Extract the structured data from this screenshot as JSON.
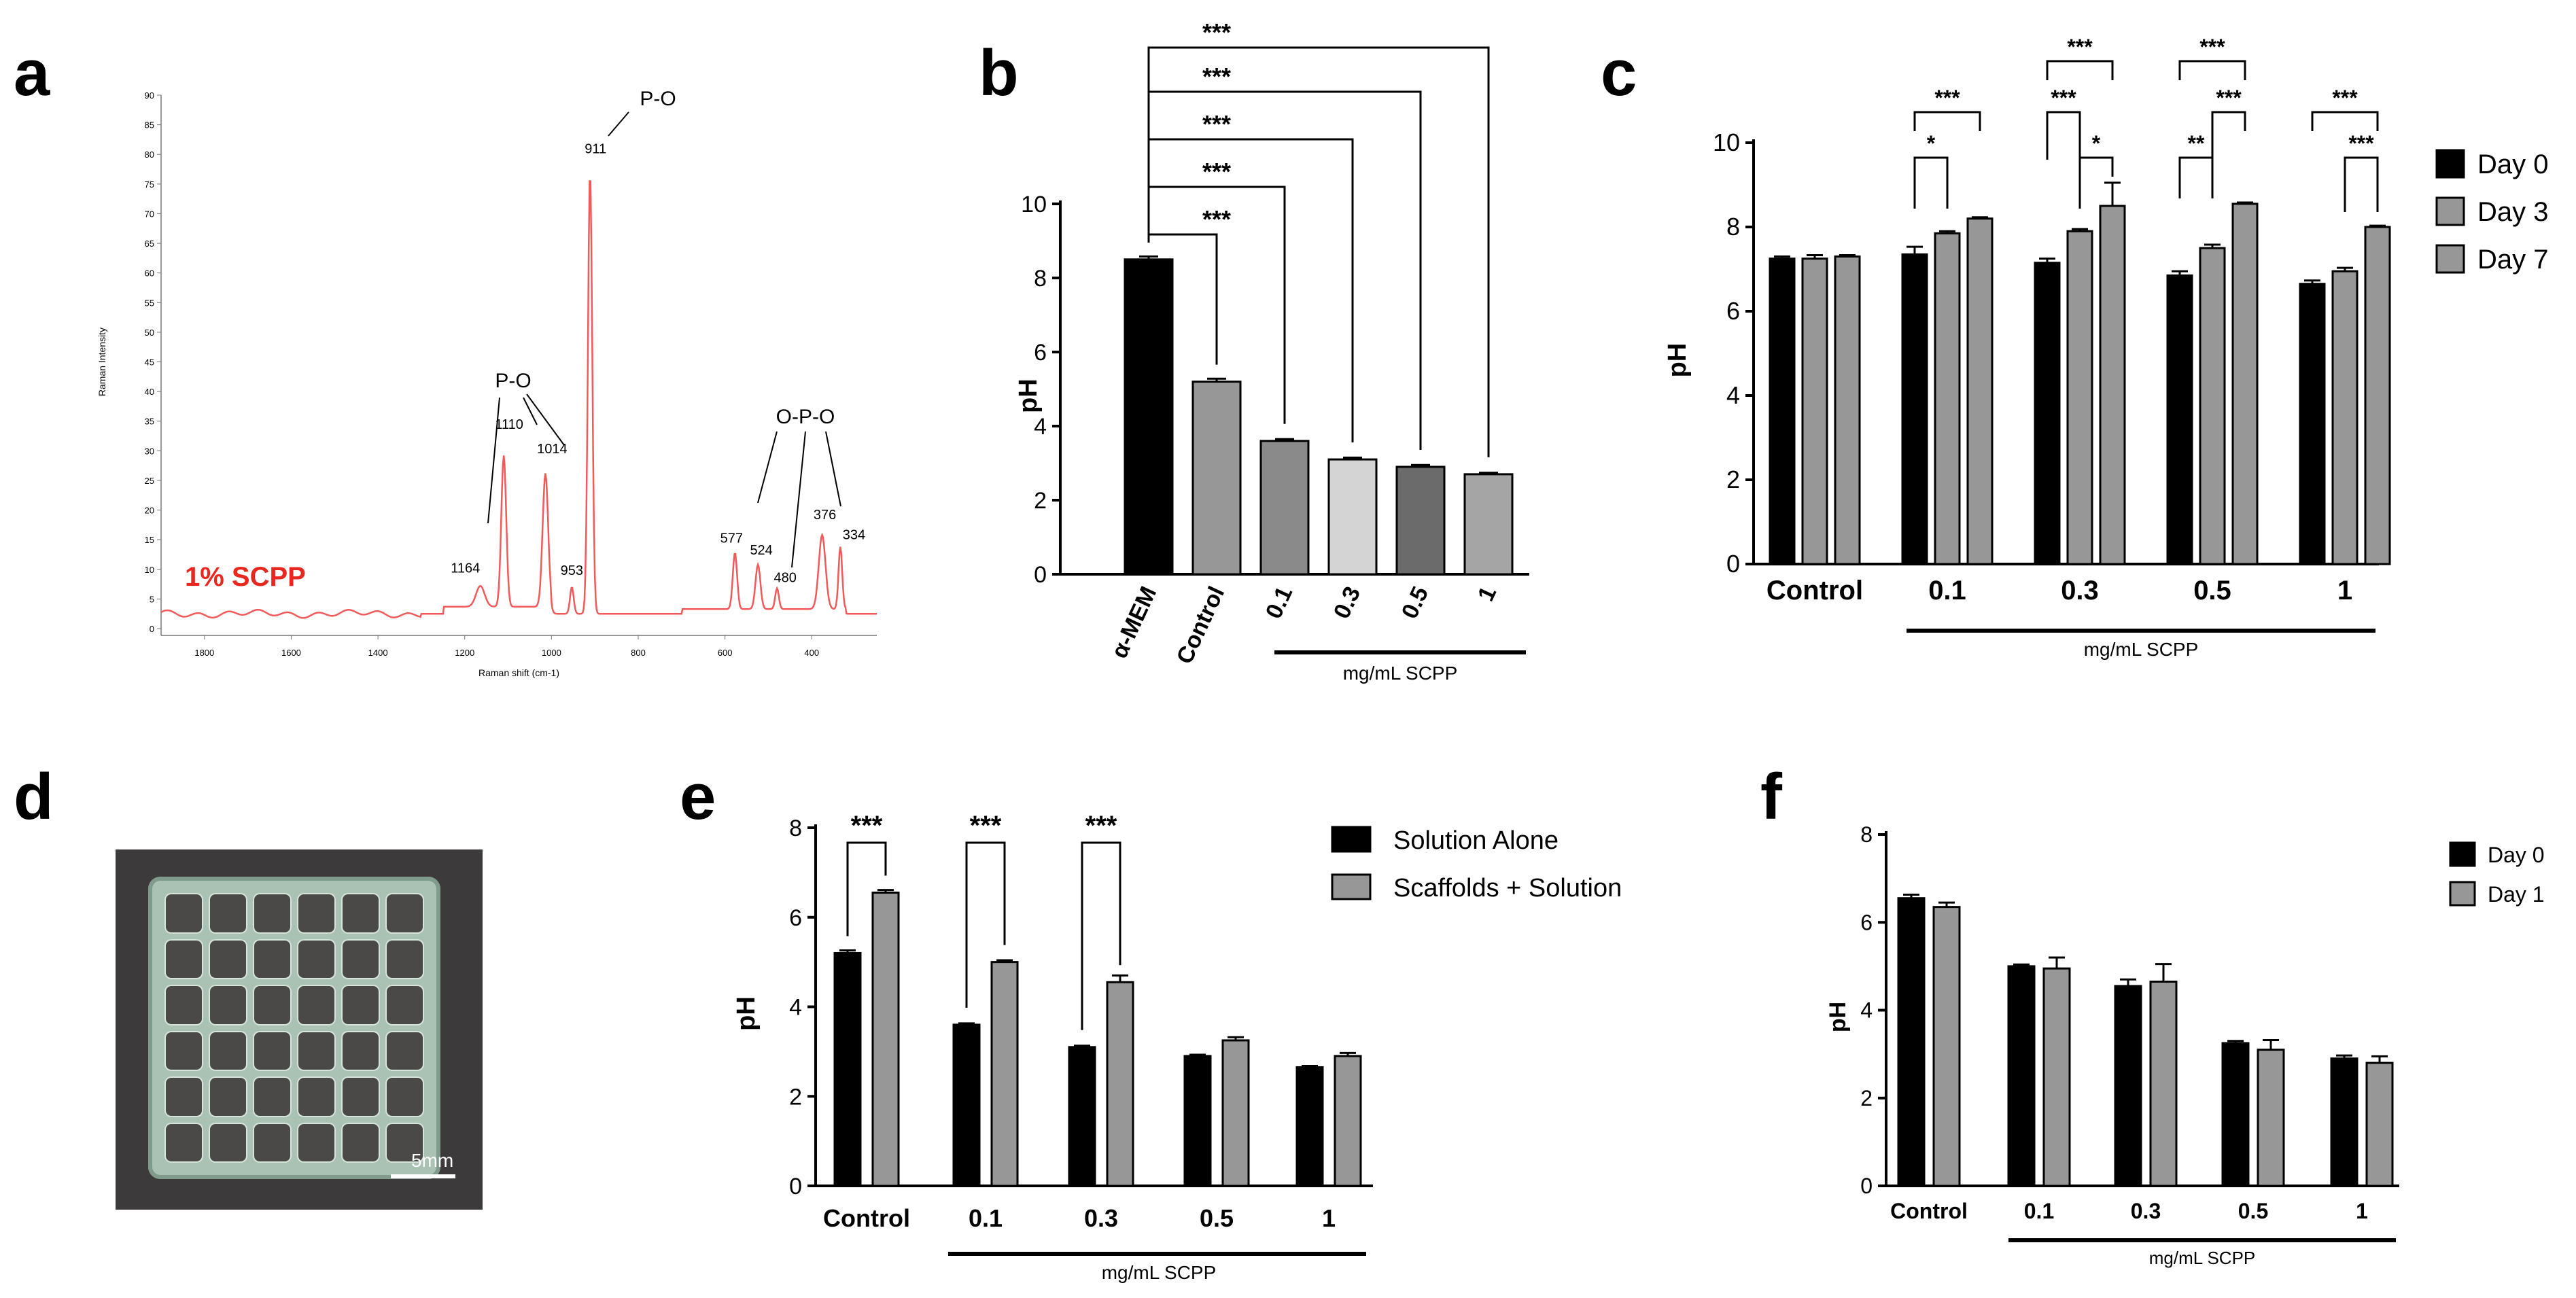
{
  "panel_letters": [
    "a",
    "b",
    "c",
    "d",
    "e",
    "f"
  ],
  "colors": {
    "black": "#000000",
    "gray": "#979797",
    "lightgray": "#d4d4d4",
    "darkgray": "#6b6b6b",
    "midgray": "#8a8a8a",
    "spectrum": "#f25a5a",
    "sample": "#e8281f"
  },
  "photo": {
    "scale_label": "5mm"
  },
  "chart_data": [
    {
      "id": "a",
      "type": "line",
      "title": "",
      "xlabel": "Raman shift (cm-1)",
      "ylabel": "Raman Intensity",
      "xlim": [
        1900,
        250
      ],
      "ylim": [
        0,
        90
      ],
      "xticks": [
        "1800",
        "1600",
        "1400",
        "1200",
        "1000",
        "800",
        "600",
        "400"
      ],
      "yticks": [
        "0",
        "5",
        "10",
        "15",
        "20",
        "25",
        "30",
        "35",
        "40",
        "45",
        "50",
        "55",
        "60",
        "65",
        "70",
        "75",
        "80",
        "85",
        "90"
      ],
      "sample_label": "1% SCPP",
      "peaks": [
        {
          "x": 1164,
          "y": 6,
          "label": "1164"
        },
        {
          "x": 1110,
          "y": 28,
          "label": "1110"
        },
        {
          "x": 1014,
          "y": 25,
          "label": "1014"
        },
        {
          "x": 953,
          "y": 7,
          "label": "953"
        },
        {
          "x": 911,
          "y": 77,
          "label": "911"
        },
        {
          "x": 577,
          "y": 12,
          "label": "577"
        },
        {
          "x": 524,
          "y": 10,
          "label": "524"
        },
        {
          "x": 480,
          "y": 6,
          "label": "480"
        },
        {
          "x": 376,
          "y": 15,
          "label": "376"
        },
        {
          "x": 334,
          "y": 13,
          "label": "334"
        }
      ],
      "annotations": [
        "P-O",
        "P-O",
        "O-P-O"
      ]
    },
    {
      "id": "b",
      "type": "bar",
      "categories": [
        "α-MEM",
        "Control",
        "0.1",
        "0.3",
        "0.5",
        "1"
      ],
      "values": [
        8.5,
        5.2,
        3.6,
        3.1,
        2.9,
        2.7
      ],
      "errors": [
        0.08,
        0.08,
        0.05,
        0.05,
        0.05,
        0.04
      ],
      "ylabel": "pH",
      "ylim": [
        0,
        10
      ],
      "yticks": [
        "0",
        "2",
        "4",
        "6",
        "8",
        "10"
      ],
      "group_label": "mg/mL SCPP",
      "significance": [
        "***",
        "***",
        "***",
        "***",
        "***"
      ]
    },
    {
      "id": "c",
      "type": "bar",
      "categories": [
        "Control",
        "0.1",
        "0.3",
        "0.5",
        "1"
      ],
      "series": [
        {
          "name": "Day 0",
          "values": [
            7.25,
            7.35,
            7.15,
            6.85,
            6.65
          ],
          "errors": [
            0.05,
            0.18,
            0.1,
            0.1,
            0.08
          ]
        },
        {
          "name": "Day 3",
          "values": [
            7.25,
            7.85,
            7.9,
            7.5,
            6.95
          ],
          "errors": [
            0.08,
            0.05,
            0.05,
            0.08,
            0.08
          ]
        },
        {
          "name": "Day 7",
          "values": [
            7.3,
            8.2,
            8.5,
            8.55,
            8.0
          ],
          "errors": [
            0.03,
            0.03,
            0.55,
            0.03,
            0.03
          ]
        }
      ],
      "ylabel": "pH",
      "ylim": [
        0,
        10
      ],
      "yticks": [
        "0",
        "2",
        "4",
        "6",
        "8",
        "10"
      ],
      "group_label": "mg/mL SCPP",
      "significance": [
        "***",
        "*",
        "***",
        "***",
        "*",
        "***",
        "**",
        "***",
        "***",
        "***"
      ]
    },
    {
      "id": "e",
      "type": "bar",
      "categories": [
        "Control",
        "0.1",
        "0.3",
        "0.5",
        "1"
      ],
      "series": [
        {
          "name": "Solution Alone",
          "values": [
            5.2,
            3.6,
            3.1,
            2.9,
            2.65
          ],
          "errors": [
            0.06,
            0.03,
            0.03,
            0.03,
            0.03
          ]
        },
        {
          "name": "Scaffolds + Solution",
          "values": [
            6.55,
            5.0,
            4.55,
            3.25,
            2.9
          ],
          "errors": [
            0.06,
            0.04,
            0.15,
            0.07,
            0.07
          ]
        }
      ],
      "ylabel": "pH",
      "ylim": [
        0,
        8
      ],
      "yticks": [
        "0",
        "2",
        "4",
        "6",
        "8"
      ],
      "group_label": "mg/mL SCPP",
      "significance": [
        "***",
        "***",
        "***"
      ]
    },
    {
      "id": "f",
      "type": "bar",
      "categories": [
        "Control",
        "0.1",
        "0.3",
        "0.5",
        "1"
      ],
      "series": [
        {
          "name": "Day 0",
          "values": [
            6.55,
            5.0,
            4.55,
            3.25,
            2.9
          ],
          "errors": [
            0.08,
            0.04,
            0.15,
            0.05,
            0.07
          ]
        },
        {
          "name": "Day 1",
          "values": [
            6.35,
            4.95,
            4.65,
            3.1,
            2.8
          ],
          "errors": [
            0.1,
            0.25,
            0.4,
            0.22,
            0.15
          ]
        }
      ],
      "ylabel": "pH",
      "ylim": [
        0,
        8
      ],
      "yticks": [
        "0",
        "2",
        "4",
        "6",
        "8"
      ],
      "group_label": "mg/mL SCPP"
    }
  ]
}
